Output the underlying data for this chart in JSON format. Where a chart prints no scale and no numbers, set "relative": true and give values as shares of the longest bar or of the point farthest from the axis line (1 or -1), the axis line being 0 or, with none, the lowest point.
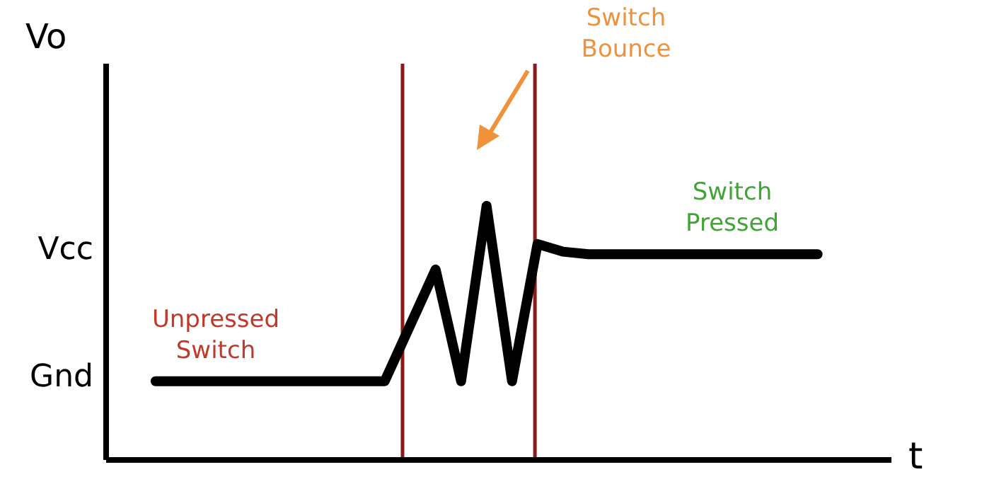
{
  "chart_data": {
    "type": "line",
    "xlabel": "t",
    "ylabel": "Vo",
    "relative": true,
    "categories": [
      null,
      null,
      null,
      null,
      null,
      null,
      null,
      null,
      null,
      null,
      null,
      null,
      null,
      null,
      null,
      null,
      null,
      null,
      null,
      null,
      null,
      null,
      null,
      null,
      null,
      null,
      null
    ],
    "series": [
      {
        "color": "#000000",
        "values": [
          0.31,
          0.31,
          0.31,
          0.31,
          0.31,
          0.31,
          0.31,
          0.31,
          0.31,
          0.31,
          0.53,
          0.75,
          0.31,
          1,
          0.31,
          0.85,
          0.82,
          0.81,
          0.81,
          0.81,
          0.81,
          0.81,
          0.81,
          0.81,
          0.81,
          0.81,
          0.81
        ]
      }
    ],
    "grid": false,
    "legend": false,
    "marker": "none",
    "line_style": "solid",
    "annotations": [
      "Gnd",
      "Vcc",
      "Unpressed Switch",
      "Switch Bounce",
      "Switch Pressed"
    ]
  }
}
